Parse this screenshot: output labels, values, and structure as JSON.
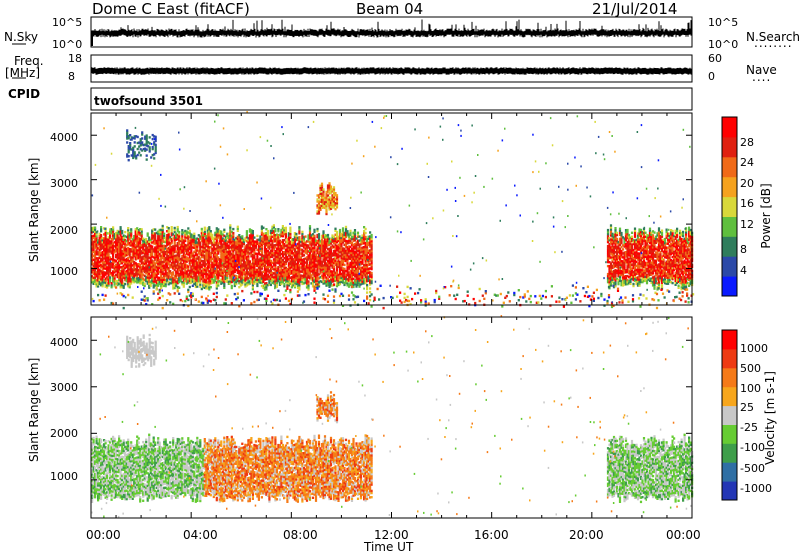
{
  "header": {
    "title": "Dome C East (fitACF)",
    "beam": "Beam 04",
    "date": "21/Jul/2014"
  },
  "params_panel": {
    "nsky_label": "N.Sky",
    "nsearch_label": "N.Search",
    "freq_label": "Freq.",
    "freq_unit": "[MHz]",
    "nave_label": "Nave",
    "cpid_label": "CPID",
    "cpid_value": "twofsound 3501",
    "noise_left_ticks": [
      "10^5",
      "10^0"
    ],
    "noise_right_ticks": [
      "10^5",
      "10^0"
    ],
    "freq_ticks": [
      "18",
      "8"
    ],
    "nave_ticks": [
      "60",
      "0"
    ],
    "nsearch_marker": "........",
    "nave_marker": "...."
  },
  "colors": {
    "power_scale": [
      "#0a1aff",
      "#2b49a8",
      "#2f7d5c",
      "#5fbf3e",
      "#d8d83a",
      "#f5a21e",
      "#f06a18",
      "#e02010",
      "#ff0000"
    ],
    "velocity_scale": [
      "#ff0000",
      "#ee3a12",
      "#f57a18",
      "#f7a61c",
      "#c8c8c8",
      "#66cc33",
      "#3e9e4a",
      "#2f6fa4",
      "#2336b5"
    ]
  },
  "chart_data": [
    {
      "type": "heatmap",
      "name": "power",
      "ylabel": "Slant Range [km]",
      "ylim": [
        180,
        4500
      ],
      "yticks": [
        1000,
        2000,
        3000,
        4000
      ],
      "xlim": [
        0,
        24
      ],
      "xticks": [
        "00:00",
        "04:00",
        "08:00",
        "12:00",
        "16:00",
        "20:00",
        "00:00"
      ],
      "colorbar": {
        "label": "Power [dB]",
        "range": [
          0,
          32
        ],
        "ticks": [
          "4",
          "8",
          "12",
          "16",
          "20",
          "24",
          "28"
        ]
      },
      "regions": [
        {
          "t": [
            0.0,
            11.2
          ],
          "r": [
            600,
            1800
          ],
          "level": "strong"
        },
        {
          "t": [
            20.6,
            24.0
          ],
          "r": [
            600,
            1800
          ],
          "level": "strong"
        },
        {
          "t": [
            1.4,
            2.6
          ],
          "r": [
            3500,
            3950
          ],
          "level": "weak"
        },
        {
          "t": [
            9.0,
            9.8
          ],
          "r": [
            2300,
            2750
          ],
          "level": "medium"
        },
        {
          "t": [
            0.0,
            24.0
          ],
          "r": [
            180,
            500
          ],
          "level": "sparse"
        }
      ]
    },
    {
      "type": "heatmap",
      "name": "velocity",
      "ylabel": "Slant Range [km]",
      "xlabel": "Time UT",
      "ylim": [
        180,
        4500
      ],
      "yticks": [
        1000,
        2000,
        3000,
        4000
      ],
      "xlim": [
        0,
        24
      ],
      "xticks": [
        "00:00",
        "04:00",
        "08:00",
        "12:00",
        "16:00",
        "20:00",
        "00:00"
      ],
      "colorbar": {
        "label": "Velocity [m s-1]",
        "ticks": [
          "1000",
          "500",
          "100",
          "25",
          "-25",
          "-100",
          "-500",
          "-1000"
        ]
      },
      "regions": [
        {
          "t": [
            0.0,
            4.5
          ],
          "r": [
            600,
            1800
          ],
          "level": "toward"
        },
        {
          "t": [
            4.5,
            11.2
          ],
          "r": [
            600,
            1800
          ],
          "level": "away"
        },
        {
          "t": [
            20.6,
            24.0
          ],
          "r": [
            600,
            1800
          ],
          "level": "toward"
        },
        {
          "t": [
            1.4,
            2.6
          ],
          "r": [
            3500,
            3950
          ],
          "level": "slow"
        },
        {
          "t": [
            9.0,
            9.8
          ],
          "r": [
            2300,
            2750
          ],
          "level": "away"
        }
      ]
    }
  ]
}
